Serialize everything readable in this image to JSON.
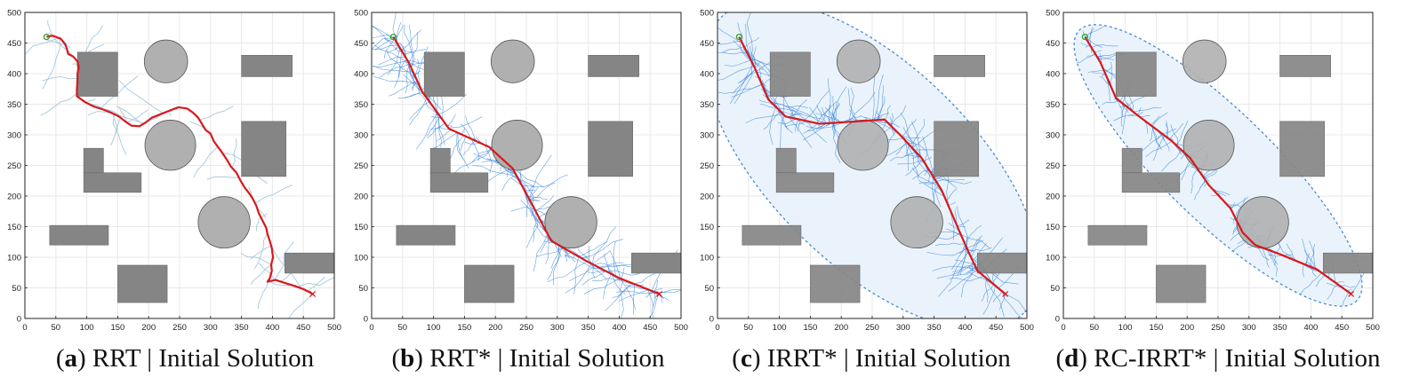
{
  "panels": [
    {
      "letter": "a",
      "method": "RRT",
      "suffix": "Initial Solution",
      "ellipse": false,
      "tree": "sparse"
    },
    {
      "letter": "b",
      "method": "RRT*",
      "suffix": "Initial Solution",
      "ellipse": false,
      "tree": "dense"
    },
    {
      "letter": "c",
      "method": "IRRT*",
      "suffix": "Initial Solution",
      "ellipse": true,
      "tree": "dense"
    },
    {
      "letter": "d",
      "method": "RC-IRRT*",
      "suffix": "Initial Solution",
      "ellipse": true,
      "tree": "focused"
    }
  ],
  "colors": {
    "path": "#d7191c",
    "tree_sparse": "#a9c8dc",
    "tree_dense": "#2f7fd8",
    "obstacle_rect": "#858585",
    "obstacle_circle": "#b0b0b0",
    "ellipse_fill": "#eaf3fb",
    "ellipse_stroke": "#4a8ad6",
    "start": "#2ca02c",
    "goal": "#d7191c",
    "grid": "#e8e8e8"
  },
  "chart_data": {
    "type": "scatter",
    "xlim": [
      0,
      500
    ],
    "ylim": [
      0,
      500
    ],
    "xticks": [
      0,
      50,
      100,
      150,
      200,
      250,
      300,
      350,
      400,
      450,
      500
    ],
    "yticks": [
      0,
      50,
      100,
      150,
      200,
      250,
      300,
      350,
      400,
      450,
      500
    ],
    "grid": true,
    "start": [
      35,
      460
    ],
    "goal": [
      465,
      40
    ],
    "obstacles": {
      "rectangles": [
        {
          "x1": 85,
          "y1": 363,
          "x2": 150,
          "y2": 435
        },
        {
          "x1": 350,
          "y1": 395,
          "x2": 432,
          "y2": 430
        },
        {
          "x1": 350,
          "y1": 232,
          "x2": 422,
          "y2": 322
        },
        {
          "x1": 95,
          "y1": 238,
          "x2": 127,
          "y2": 278
        },
        {
          "x1": 95,
          "y1": 206,
          "x2": 188,
          "y2": 238
        },
        {
          "x1": 40,
          "y1": 120,
          "x2": 135,
          "y2": 152
        },
        {
          "x1": 150,
          "y1": 26,
          "x2": 230,
          "y2": 87
        },
        {
          "x1": 420,
          "y1": 74,
          "x2": 505,
          "y2": 107
        }
      ],
      "circles": [
        {
          "cx": 228,
          "cy": 420,
          "r": 35
        },
        {
          "cx": 235,
          "cy": 283,
          "r": 41
        },
        {
          "cx": 322,
          "cy": 157,
          "r": 42
        }
      ]
    },
    "paths": {
      "a": [
        [
          35,
          460
        ],
        [
          45,
          462
        ],
        [
          58,
          457
        ],
        [
          65,
          448
        ],
        [
          68,
          440
        ],
        [
          70,
          432
        ],
        [
          78,
          428
        ],
        [
          85,
          420
        ],
        [
          87,
          410
        ],
        [
          85,
          400
        ],
        [
          85,
          388
        ],
        [
          84,
          375
        ],
        [
          84,
          363
        ],
        [
          98,
          353
        ],
        [
          112,
          346
        ],
        [
          125,
          342
        ],
        [
          140,
          336
        ],
        [
          152,
          330
        ],
        [
          162,
          322
        ],
        [
          172,
          315
        ],
        [
          185,
          314
        ],
        [
          195,
          320
        ],
        [
          205,
          328
        ],
        [
          220,
          334
        ],
        [
          235,
          340
        ],
        [
          248,
          345
        ],
        [
          262,
          343
        ],
        [
          272,
          336
        ],
        [
          280,
          328
        ],
        [
          286,
          318
        ],
        [
          292,
          308
        ],
        [
          300,
          302
        ],
        [
          305,
          290
        ],
        [
          310,
          283
        ],
        [
          318,
          272
        ],
        [
          326,
          260
        ],
        [
          333,
          248
        ],
        [
          342,
          238
        ],
        [
          348,
          226
        ],
        [
          355,
          214
        ],
        [
          362,
          205
        ],
        [
          368,
          196
        ],
        [
          374,
          184
        ],
        [
          378,
          172
        ],
        [
          384,
          160
        ],
        [
          390,
          148
        ],
        [
          392,
          138
        ],
        [
          396,
          126
        ],
        [
          399,
          115
        ],
        [
          401,
          100
        ],
        [
          398,
          88
        ],
        [
          399,
          78
        ],
        [
          396,
          66
        ],
        [
          392,
          60
        ],
        [
          405,
          63
        ],
        [
          420,
          58
        ],
        [
          436,
          53
        ],
        [
          450,
          48
        ],
        [
          458,
          44
        ],
        [
          465,
          40
        ]
      ],
      "b": [
        [
          35,
          460
        ],
        [
          60,
          418
        ],
        [
          82,
          370
        ],
        [
          125,
          310
        ],
        [
          190,
          280
        ],
        [
          228,
          245
        ],
        [
          260,
          185
        ],
        [
          290,
          127
        ],
        [
          345,
          95
        ],
        [
          400,
          66
        ],
        [
          465,
          40
        ]
      ],
      "c": [
        [
          35,
          460
        ],
        [
          60,
          410
        ],
        [
          82,
          358
        ],
        [
          110,
          330
        ],
        [
          165,
          318
        ],
        [
          195,
          320
        ],
        [
          270,
          325
        ],
        [
          295,
          300
        ],
        [
          330,
          262
        ],
        [
          362,
          210
        ],
        [
          392,
          140
        ],
        [
          405,
          110
        ],
        [
          420,
          78
        ],
        [
          465,
          40
        ]
      ],
      "d": [
        [
          35,
          460
        ],
        [
          60,
          418
        ],
        [
          85,
          360
        ],
        [
          125,
          328
        ],
        [
          175,
          290
        ],
        [
          205,
          262
        ],
        [
          235,
          218
        ],
        [
          270,
          180
        ],
        [
          290,
          140
        ],
        [
          310,
          120
        ],
        [
          350,
          105
        ],
        [
          410,
          80
        ],
        [
          465,
          40
        ]
      ]
    }
  }
}
